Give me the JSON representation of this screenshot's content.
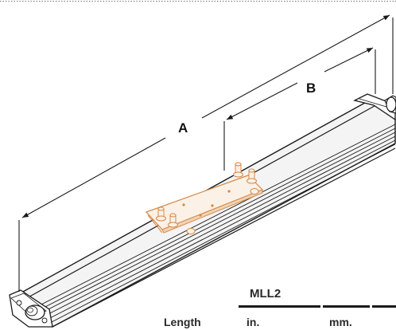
{
  "dimensions": {
    "overall_label": "A",
    "plate_label": "B"
  },
  "table": {
    "title": "MLL2",
    "row_label": "Length",
    "col_in": "in.",
    "col_mm": "mm."
  },
  "colors": {
    "line": "#1a1a1a",
    "housing": "#f4f4f4",
    "plate": "#d4894a",
    "plate_fill": "#fbf1e6"
  },
  "icons": [
    "mounting-stud-icon",
    "end-cap-icon",
    "cable-gland-icon"
  ]
}
